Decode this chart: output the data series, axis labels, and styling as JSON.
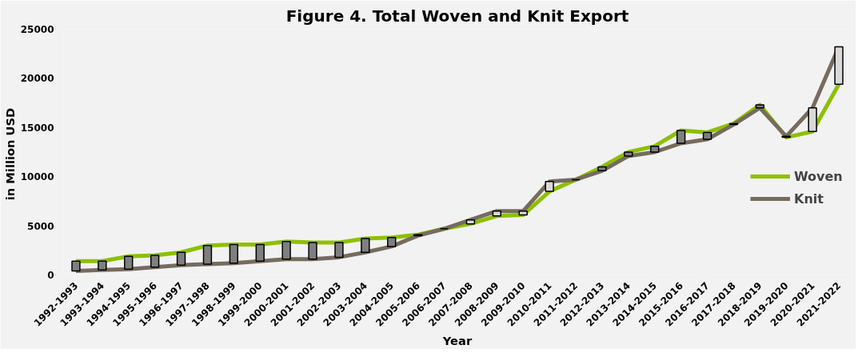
{
  "chart_data": {
    "type": "line",
    "title": "Figure 4. Total Woven and Knit Export",
    "xlabel": "Year",
    "ylabel": "in Million  USD",
    "categories": [
      "1992-1993",
      "1993-1994",
      "1994-1995",
      "1995-1996",
      "1996-1997",
      "1997-1998",
      "1998-1999",
      "1999-2000",
      "2000-2001",
      "2001-2002",
      "2002-2003",
      "2003-2004",
      "2004-2005",
      "2005-2006",
      "2006-2007",
      "2007-2008",
      "2008-2009",
      "2009-2010",
      "2010-2011",
      "2011-2012",
      "2012-2013",
      "2013-2014",
      "2014-2015",
      "2015-2016",
      "2016-2017",
      "2017-2018",
      "2018-2019",
      "2019-2020",
      "2020-2021",
      "2021-2022"
    ],
    "series": [
      {
        "name": "Woven",
        "color": "#8dc000",
        "values": [
          1400,
          1400,
          1900,
          2000,
          2300,
          3000,
          3100,
          3100,
          3400,
          3300,
          3300,
          3700,
          3800,
          4100,
          4700,
          5200,
          6000,
          6100,
          8500,
          9700,
          11000,
          12500,
          13100,
          14700,
          14500,
          15400,
          17300,
          14000,
          14600,
          19400
        ]
      },
      {
        "name": "Knit",
        "color": "#766b5e",
        "values": [
          400,
          500,
          600,
          800,
          1000,
          1100,
          1200,
          1400,
          1600,
          1600,
          1800,
          2300,
          2900,
          4000,
          4700,
          5600,
          6500,
          6500,
          9500,
          9700,
          10600,
          12100,
          12500,
          13400,
          13800,
          15300,
          17000,
          14100,
          17000,
          23200
        ]
      },
      {
        "type": "bar",
        "base": [
          400,
          500,
          600,
          800,
          1000,
          1100,
          1200,
          1400,
          1600,
          1600,
          1800,
          2300,
          2900,
          4000,
          4700,
          5200,
          6000,
          6100,
          8500,
          9700,
          10600,
          12100,
          12500,
          13400,
          13800,
          15300,
          17000,
          14000,
          14600,
          19400
        ],
        "values": [
          1000,
          900,
          1300,
          1200,
          1300,
          1900,
          1900,
          1700,
          1800,
          1700,
          1500,
          1400,
          900,
          100,
          0,
          400,
          500,
          400,
          1000,
          0,
          400,
          400,
          600,
          1300,
          700,
          100,
          300,
          100,
          2400,
          3800
        ],
        "colors": [
          "#7f7f7f",
          "#7f7f7f",
          "#7f7f7f",
          "#7f7f7f",
          "#7f7f7f",
          "#7f7f7f",
          "#7f7f7f",
          "#7f7f7f",
          "#7f7f7f",
          "#7f7f7f",
          "#7f7f7f",
          "#7f7f7f",
          "#7f7f7f",
          "#7f7f7f",
          "#000000",
          "#d9d9d9",
          "#d9d9d9",
          "#d9d9d9",
          "#d9d9d9",
          "#000000",
          "#7f7f7f",
          "#7f7f7f",
          "#7f7f7f",
          "#7f7f7f",
          "#7f7f7f",
          "#7f7f7f",
          "#7f7f7f",
          "#d9d9d9",
          "#d9d9d9",
          "#d9d9d9"
        ]
      }
    ],
    "ylim": [
      0,
      25000
    ],
    "yticks": [
      0,
      5000,
      10000,
      15000,
      20000,
      25000
    ],
    "grid": false,
    "legend": "right",
    "marker": "none",
    "line_style": "solid"
  }
}
